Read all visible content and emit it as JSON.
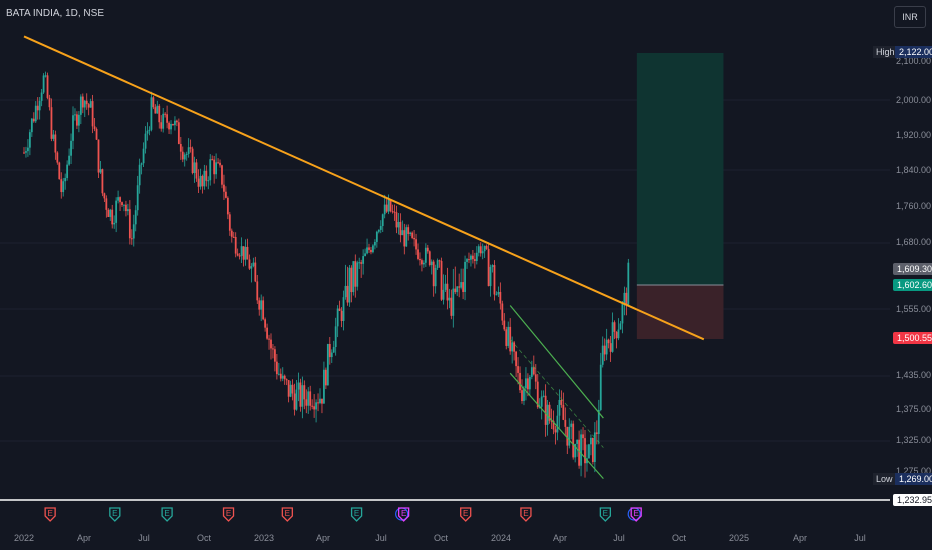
{
  "header": {
    "title": "BATA INDIA, 1D, NSE",
    "currency": "INR"
  },
  "colors": {
    "background": "#131722",
    "up": "#26a69a",
    "down": "#ef5350",
    "trendline": "#f7a21b",
    "channel": "#4caf50",
    "target_zone": "#0f3431",
    "stop_zone": "#3a2229"
  },
  "chart_data": {
    "type": "candlestick",
    "title": "BATA INDIA, 1D, NSE",
    "x_ticks": [
      "2022",
      "Apr",
      "Jul",
      "Oct",
      "2023",
      "Apr",
      "Jul",
      "Oct",
      "2024",
      "Apr",
      "Jul",
      "Oct",
      "2025",
      "Apr",
      "Jul"
    ],
    "y_ticks": [
      "2,100.00",
      "2,000.00",
      "1,920.00",
      "1,840.00",
      "1,760.00",
      "1,680.00",
      "1,555.00",
      "1,435.00",
      "1,375.00",
      "1,325.00",
      "1,275.00"
    ],
    "price_tags": {
      "high": {
        "label": "High",
        "value": "2,122.00"
      },
      "low": {
        "label": "Low",
        "value": "1,269.00"
      },
      "last_close": "1,609.30",
      "current": "1,602.60",
      "stop": "1,500.55",
      "bottom": "1,232.95"
    },
    "price_path": [
      [
        "2022-01-01",
        1880
      ],
      [
        "2022-01-15",
        1960
      ],
      [
        "2022-02-01",
        2060
      ],
      [
        "2022-02-15",
        1900
      ],
      [
        "2022-03-01",
        1780
      ],
      [
        "2022-03-15",
        1930
      ],
      [
        "2022-04-01",
        2010
      ],
      [
        "2022-04-15",
        1970
      ],
      [
        "2022-05-01",
        1790
      ],
      [
        "2022-05-15",
        1740
      ],
      [
        "2022-06-01",
        1790
      ],
      [
        "2022-06-15",
        1690
      ],
      [
        "2022-07-01",
        1870
      ],
      [
        "2022-07-15",
        1980
      ],
      [
        "2022-08-01",
        1945
      ],
      [
        "2022-08-15",
        1960
      ],
      [
        "2022-09-01",
        1890
      ],
      [
        "2022-09-15",
        1860
      ],
      [
        "2022-10-01",
        1800
      ],
      [
        "2022-10-15",
        1860
      ],
      [
        "2022-11-01",
        1820
      ],
      [
        "2022-11-15",
        1690
      ],
      [
        "2022-12-01",
        1660
      ],
      [
        "2022-12-15",
        1610
      ],
      [
        "2023-01-01",
        1565
      ],
      [
        "2023-01-15",
        1480
      ],
      [
        "2023-02-01",
        1420
      ],
      [
        "2023-02-15",
        1405
      ],
      [
        "2023-03-01",
        1395
      ],
      [
        "2023-03-15",
        1405
      ],
      [
        "2023-04-01",
        1400
      ],
      [
        "2023-04-15",
        1490
      ],
      [
        "2023-05-01",
        1550
      ],
      [
        "2023-05-15",
        1600
      ],
      [
        "2023-06-01",
        1620
      ],
      [
        "2023-06-15",
        1670
      ],
      [
        "2023-07-01",
        1740
      ],
      [
        "2023-07-15",
        1755
      ],
      [
        "2023-08-01",
        1700
      ],
      [
        "2023-08-15",
        1680
      ],
      [
        "2023-09-01",
        1650
      ],
      [
        "2023-09-15",
        1640
      ],
      [
        "2023-10-01",
        1600
      ],
      [
        "2023-10-15",
        1560
      ],
      [
        "2023-11-01",
        1600
      ],
      [
        "2023-11-15",
        1640
      ],
      [
        "2023-12-01",
        1670
      ],
      [
        "2023-12-15",
        1620
      ],
      [
        "2024-01-01",
        1560
      ],
      [
        "2024-01-15",
        1480
      ],
      [
        "2024-02-01",
        1410
      ],
      [
        "2024-02-15",
        1450
      ],
      [
        "2024-03-01",
        1390
      ],
      [
        "2024-03-15",
        1360
      ],
      [
        "2024-04-01",
        1370
      ],
      [
        "2024-04-15",
        1330
      ],
      [
        "2024-05-01",
        1310
      ],
      [
        "2024-05-15",
        1300
      ],
      [
        "2024-05-25",
        1330
      ],
      [
        "2024-06-05",
        1490
      ],
      [
        "2024-06-20",
        1510
      ],
      [
        "2024-07-01",
        1540
      ],
      [
        "2024-07-15",
        1610
      ]
    ],
    "trendline": {
      "from": [
        "2022-01-01",
        2165
      ],
      "to": [
        "2024-11-05",
        1500
      ]
    },
    "channel": {
      "upper": [
        [
          "2024-01-15",
          1562
        ],
        [
          "2024-06-05",
          1362
        ]
      ],
      "lower": [
        [
          "2024-01-15",
          1440
        ],
        [
          "2024-06-05",
          1268
        ]
      ],
      "mid": [
        [
          "2024-01-15",
          1500
        ],
        [
          "2024-06-05",
          1315
        ]
      ]
    },
    "position": {
      "start": "2024-07-26",
      "end": "2024-12-05",
      "entry": 1602.6,
      "target": 2122.0,
      "stop": 1500.55
    },
    "events": [
      {
        "date": "2022-02-10",
        "label": "E",
        "kind": "earnings_down"
      },
      {
        "date": "2022-05-20",
        "label": "E",
        "kind": "earnings_up"
      },
      {
        "date": "2022-08-08",
        "label": "E",
        "kind": "earnings_up"
      },
      {
        "date": "2022-11-10",
        "label": "E",
        "kind": "earnings_down"
      },
      {
        "date": "2023-02-08",
        "label": "E",
        "kind": "earnings_down"
      },
      {
        "date": "2023-05-25",
        "label": "E",
        "kind": "earnings_up"
      },
      {
        "date": "2023-08-05",
        "label": "E",
        "kind": "earnings_mixed"
      },
      {
        "date": "2023-11-08",
        "label": "E",
        "kind": "earnings_down"
      },
      {
        "date": "2024-02-08",
        "label": "E",
        "kind": "earnings_down"
      },
      {
        "date": "2024-06-08",
        "label": "E",
        "kind": "earnings_up"
      },
      {
        "date": "2024-07-25",
        "label": "E",
        "kind": "earnings_mixed"
      }
    ]
  }
}
